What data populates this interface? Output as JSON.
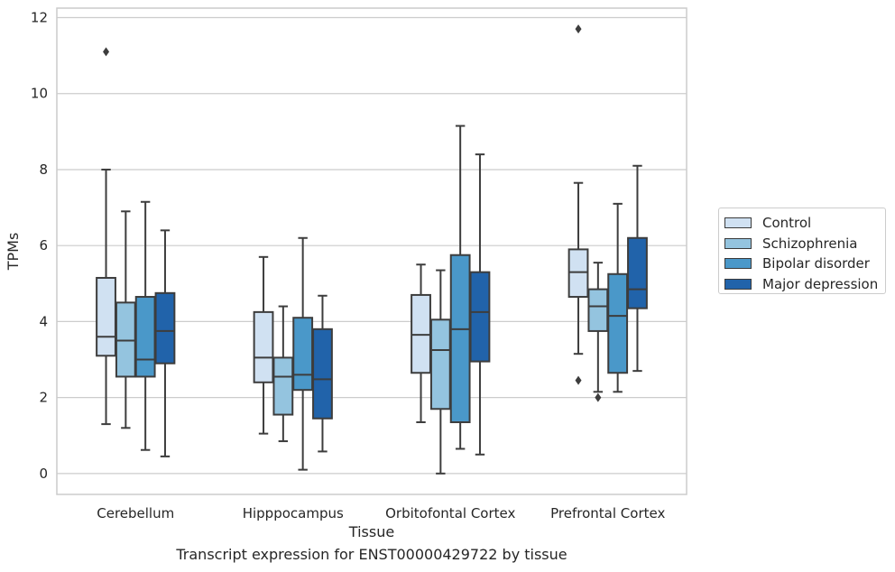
{
  "chart_data": {
    "type": "box",
    "title": "",
    "caption": "Transcript expression for ENST00000429722 by tissue",
    "xlabel": "Tissue",
    "ylabel": "TPMs",
    "categories": [
      "Cerebellum",
      "Hipppocampus",
      "Orbitofontal Cortex",
      "Prefrontal Cortex"
    ],
    "ylim": [
      -0.55,
      12.25
    ],
    "yticks": [
      0,
      2,
      4,
      6,
      8,
      10,
      12
    ],
    "grid": true,
    "legend_position": "center-right",
    "series": [
      {
        "name": "Control",
        "color": "#d0e1f2",
        "boxes": [
          {
            "whisker_low": 1.3,
            "q1": 3.1,
            "median": 3.6,
            "q3": 5.15,
            "whisker_high": 8.0,
            "outliers": [
              11.1
            ]
          },
          {
            "whisker_low": 1.05,
            "q1": 2.4,
            "median": 3.05,
            "q3": 4.25,
            "whisker_high": 5.7,
            "outliers": []
          },
          {
            "whisker_low": 1.35,
            "q1": 2.65,
            "median": 3.65,
            "q3": 4.7,
            "whisker_high": 5.5,
            "outliers": []
          },
          {
            "whisker_low": 3.15,
            "q1": 4.65,
            "median": 5.3,
            "q3": 5.9,
            "whisker_high": 7.65,
            "outliers": [
              2.45,
              11.7
            ]
          }
        ]
      },
      {
        "name": "Schizophrenia",
        "color": "#94c4df",
        "boxes": [
          {
            "whisker_low": 1.2,
            "q1": 2.55,
            "median": 3.5,
            "q3": 4.5,
            "whisker_high": 6.9,
            "outliers": []
          },
          {
            "whisker_low": 0.85,
            "q1": 1.55,
            "median": 2.55,
            "q3": 3.05,
            "whisker_high": 4.4,
            "outliers": []
          },
          {
            "whisker_low": 0.0,
            "q1": 1.7,
            "median": 3.25,
            "q3": 4.05,
            "whisker_high": 5.35,
            "outliers": []
          },
          {
            "whisker_low": 2.15,
            "q1": 3.75,
            "median": 4.4,
            "q3": 4.85,
            "whisker_high": 5.55,
            "outliers": [
              2.0
            ]
          }
        ]
      },
      {
        "name": "Bipolar disorder",
        "color": "#4a98c9",
        "boxes": [
          {
            "whisker_low": 0.62,
            "q1": 2.55,
            "median": 3.0,
            "q3": 4.65,
            "whisker_high": 7.15,
            "outliers": []
          },
          {
            "whisker_low": 0.1,
            "q1": 2.2,
            "median": 2.6,
            "q3": 4.1,
            "whisker_high": 6.2,
            "outliers": []
          },
          {
            "whisker_low": 0.65,
            "q1": 1.35,
            "median": 3.8,
            "q3": 5.75,
            "whisker_high": 9.15,
            "outliers": []
          },
          {
            "whisker_low": 2.15,
            "q1": 2.65,
            "median": 4.15,
            "q3": 5.25,
            "whisker_high": 7.1,
            "outliers": []
          }
        ]
      },
      {
        "name": "Major depression",
        "color": "#2163aa",
        "boxes": [
          {
            "whisker_low": 0.45,
            "q1": 2.9,
            "median": 3.75,
            "q3": 4.75,
            "whisker_high": 6.4,
            "outliers": []
          },
          {
            "whisker_low": 0.58,
            "q1": 1.45,
            "median": 2.48,
            "q3": 3.8,
            "whisker_high": 4.68,
            "outliers": []
          },
          {
            "whisker_low": 0.5,
            "q1": 2.95,
            "median": 4.25,
            "q3": 5.3,
            "whisker_high": 8.4,
            "outliers": []
          },
          {
            "whisker_low": 2.7,
            "q1": 4.35,
            "median": 4.85,
            "q3": 6.2,
            "whisker_high": 8.1,
            "outliers": []
          }
        ]
      }
    ]
  }
}
